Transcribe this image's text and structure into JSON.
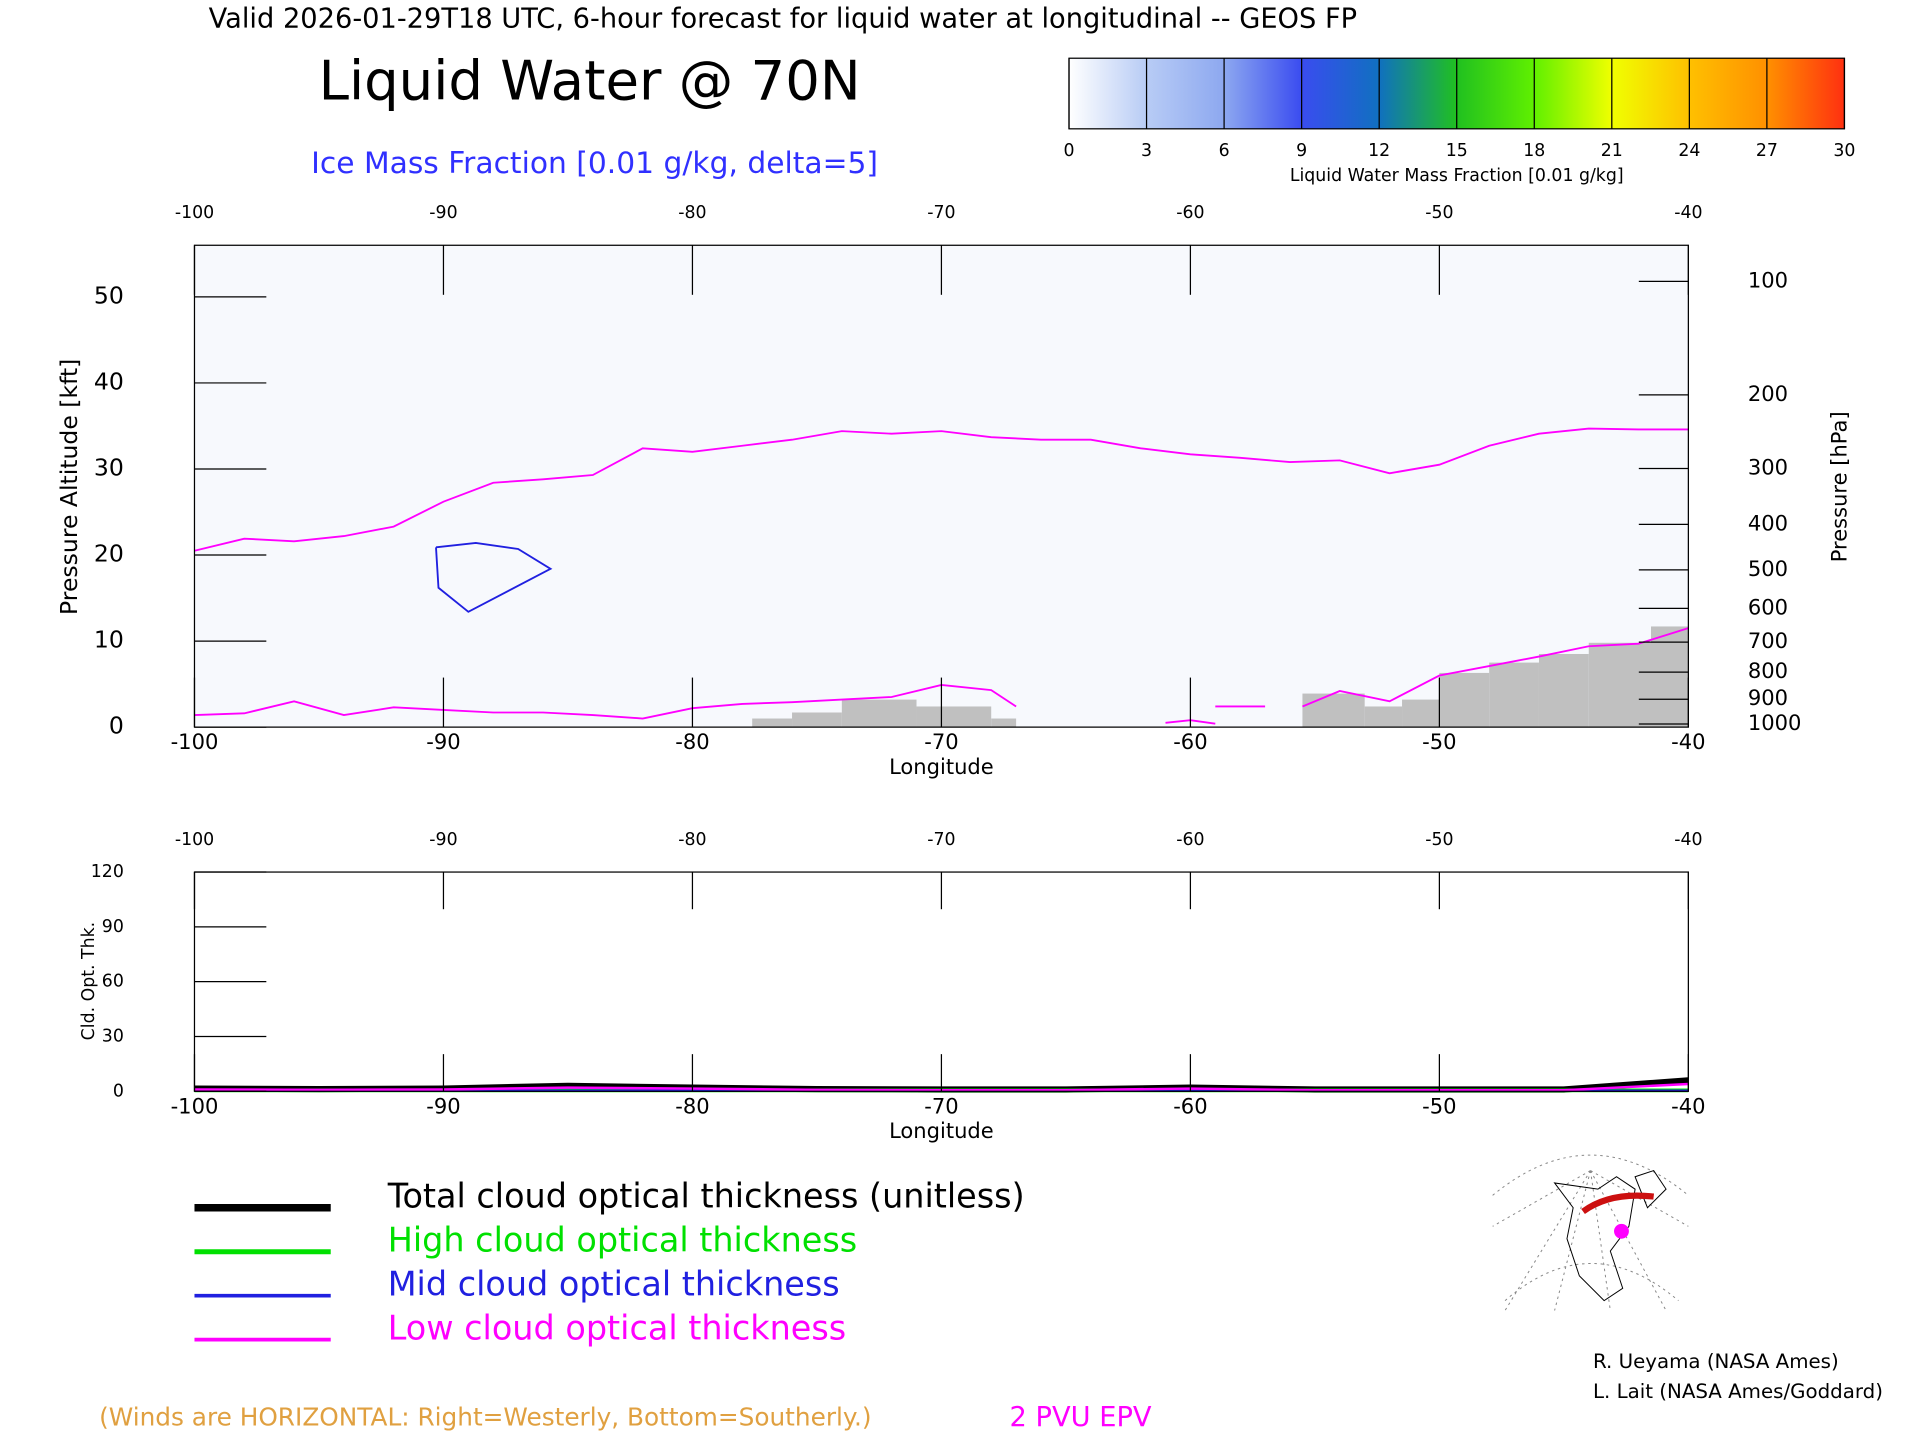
{
  "header": "Valid 2026-01-29T18 UTC, 6-hour forecast for liquid water at longitudinal -- GEOS FP",
  "colorbar": {
    "label": "Liquid Water Mass Fraction [0.01 g/kg]",
    "ticks": [
      0,
      3,
      6,
      9,
      12,
      15,
      18,
      21,
      24,
      27,
      30
    ],
    "colors": [
      "#ffffff",
      "#b8ccf5",
      "#8da8f0",
      "#3a4cf0",
      "#1070c0",
      "#20c020",
      "#60f000",
      "#f0ff00",
      "#ffc000",
      "#ff9000",
      "#ff3010"
    ]
  },
  "chart_data": [
    {
      "type": "line",
      "title": "Liquid Water @ 70N",
      "subtitle": "Ice Mass Fraction [0.01 g/kg, delta=5]",
      "xlabel": "Longitude",
      "ylabel": "Pressure Altitude [kft]",
      "y2label": "Pressure [hPa]",
      "xlim": [
        -100,
        -40
      ],
      "xticks": [
        -100,
        -90,
        -80,
        -70,
        -60,
        -50,
        -40
      ],
      "ylim": [
        0,
        56
      ],
      "yticks": [
        0,
        10,
        20,
        30,
        40,
        50
      ],
      "y2scale": "pressure-altitude",
      "y2ticks": [
        100,
        200,
        300,
        400,
        500,
        600,
        700,
        800,
        900,
        1000
      ],
      "background": "#f7f9fd",
      "series": [
        {
          "name": "2 PVU EPV",
          "color": "#ff00ff",
          "x": [
            -100,
            -98,
            -96,
            -94,
            -92,
            -90,
            -88,
            -86,
            -84,
            -82,
            -80,
            -78,
            -76,
            -74,
            -72,
            -70,
            -68,
            -66,
            -64,
            -62,
            -60,
            -58,
            -56,
            -54,
            -52,
            -50,
            -48,
            -46,
            -44,
            -42,
            -40,
            null,
            -100,
            -98,
            -96,
            -94,
            -92,
            -90,
            -88,
            -86,
            -84,
            -82,
            -80,
            -78,
            -76,
            -74,
            -72,
            -70,
            -68,
            -67,
            null,
            -61,
            -60,
            -59,
            null,
            -59,
            -57,
            null,
            -55.5,
            -54,
            -52,
            -50,
            -48,
            -46,
            -44,
            -42,
            -40
          ],
          "values": [
            20.5,
            21.9,
            21.6,
            22.2,
            23.3,
            26.2,
            28.4,
            28.8,
            29.3,
            32.4,
            32.0,
            32.7,
            33.4,
            34.4,
            34.1,
            34.4,
            33.7,
            33.4,
            33.4,
            32.4,
            31.7,
            31.3,
            30.8,
            31.0,
            29.5,
            30.5,
            32.7,
            34.1,
            34.7,
            34.6,
            34.6,
            null,
            1.4,
            1.6,
            3.0,
            1.4,
            2.3,
            2.0,
            1.7,
            1.7,
            1.4,
            1.0,
            2.2,
            2.7,
            2.9,
            3.2,
            3.5,
            4.9,
            4.3,
            2.4,
            null,
            0.5,
            0.8,
            0.4,
            null,
            2.4,
            2.4,
            null,
            2.4,
            4.2,
            3.0,
            6.0,
            7.1,
            8.2,
            9.4,
            9.7,
            11.5
          ]
        }
      ],
      "contour": {
        "color": "#2020e0",
        "x": [
          -90.3,
          -88.7,
          -87,
          -85.7,
          -89,
          -90.2,
          -90.3
        ],
        "values": [
          20.9,
          21.4,
          20.7,
          18.4,
          13.4,
          16.2,
          20.9
        ]
      },
      "terrain": {
        "color": "#c0c0c0",
        "x_start": [
          -77.6,
          -76,
          -74,
          -71,
          -68,
          -55.5,
          -53,
          -51.5,
          -50,
          -48,
          -46,
          -44,
          -41.5
        ],
        "x_end": [
          -76,
          -74,
          -71,
          -68,
          -67,
          -53,
          -51.5,
          -50,
          -48,
          -46,
          -44,
          -41.5,
          -40
        ],
        "values": [
          1.0,
          1.7,
          3.2,
          2.4,
          1.0,
          3.9,
          2.4,
          3.2,
          6.3,
          7.5,
          8.5,
          9.8,
          11.7
        ]
      },
      "note": "(Winds are HORIZONTAL: Right=Westerly, Bottom=Southerly.)"
    },
    {
      "type": "line",
      "xlabel": "Longitude",
      "ylabel": "Cld. Opt. Thk.",
      "xlim": [
        -100,
        -40
      ],
      "xticks": [
        -100,
        -90,
        -80,
        -70,
        -60,
        -50,
        -40
      ],
      "ylim": [
        0,
        120
      ],
      "yticks": [
        0,
        30,
        60,
        90,
        120
      ],
      "x": [
        -100,
        -95,
        -90,
        -85,
        -80,
        -75,
        -70,
        -65,
        -60,
        -55,
        -50,
        -45,
        -40
      ],
      "series": [
        {
          "name": "Total cloud optical thickness (unitless)",
          "color": "#000000",
          "values": [
            1.5,
            1.2,
            1.5,
            3,
            2,
            1.2,
            1,
            1,
            2,
            1,
            1,
            1,
            6
          ]
        },
        {
          "name": "High cloud optical thickness",
          "color": "#00e000",
          "values": [
            0.5,
            0.5,
            0.5,
            0.5,
            0.5,
            0.5,
            0.5,
            0.5,
            0.5,
            0.5,
            0.5,
            0.5,
            0.5
          ]
        },
        {
          "name": "Mid cloud optical thickness",
          "color": "#2020e0",
          "values": [
            0.3,
            0.3,
            0.3,
            0.3,
            0.3,
            0.3,
            0.3,
            0.3,
            0.3,
            0.3,
            0.3,
            0.3,
            0.3
          ]
        },
        {
          "name": "Low cloud optical thickness",
          "color": "#ff00ff",
          "values": [
            1,
            0.8,
            1,
            2,
            1.5,
            0.8,
            0.6,
            0.6,
            1.5,
            0.6,
            0.6,
            0.6,
            4
          ]
        }
      ]
    }
  ],
  "credits": [
    "R. Ueyama (NASA Ames)",
    "L. Lait (NASA Ames/Goddard)"
  ]
}
